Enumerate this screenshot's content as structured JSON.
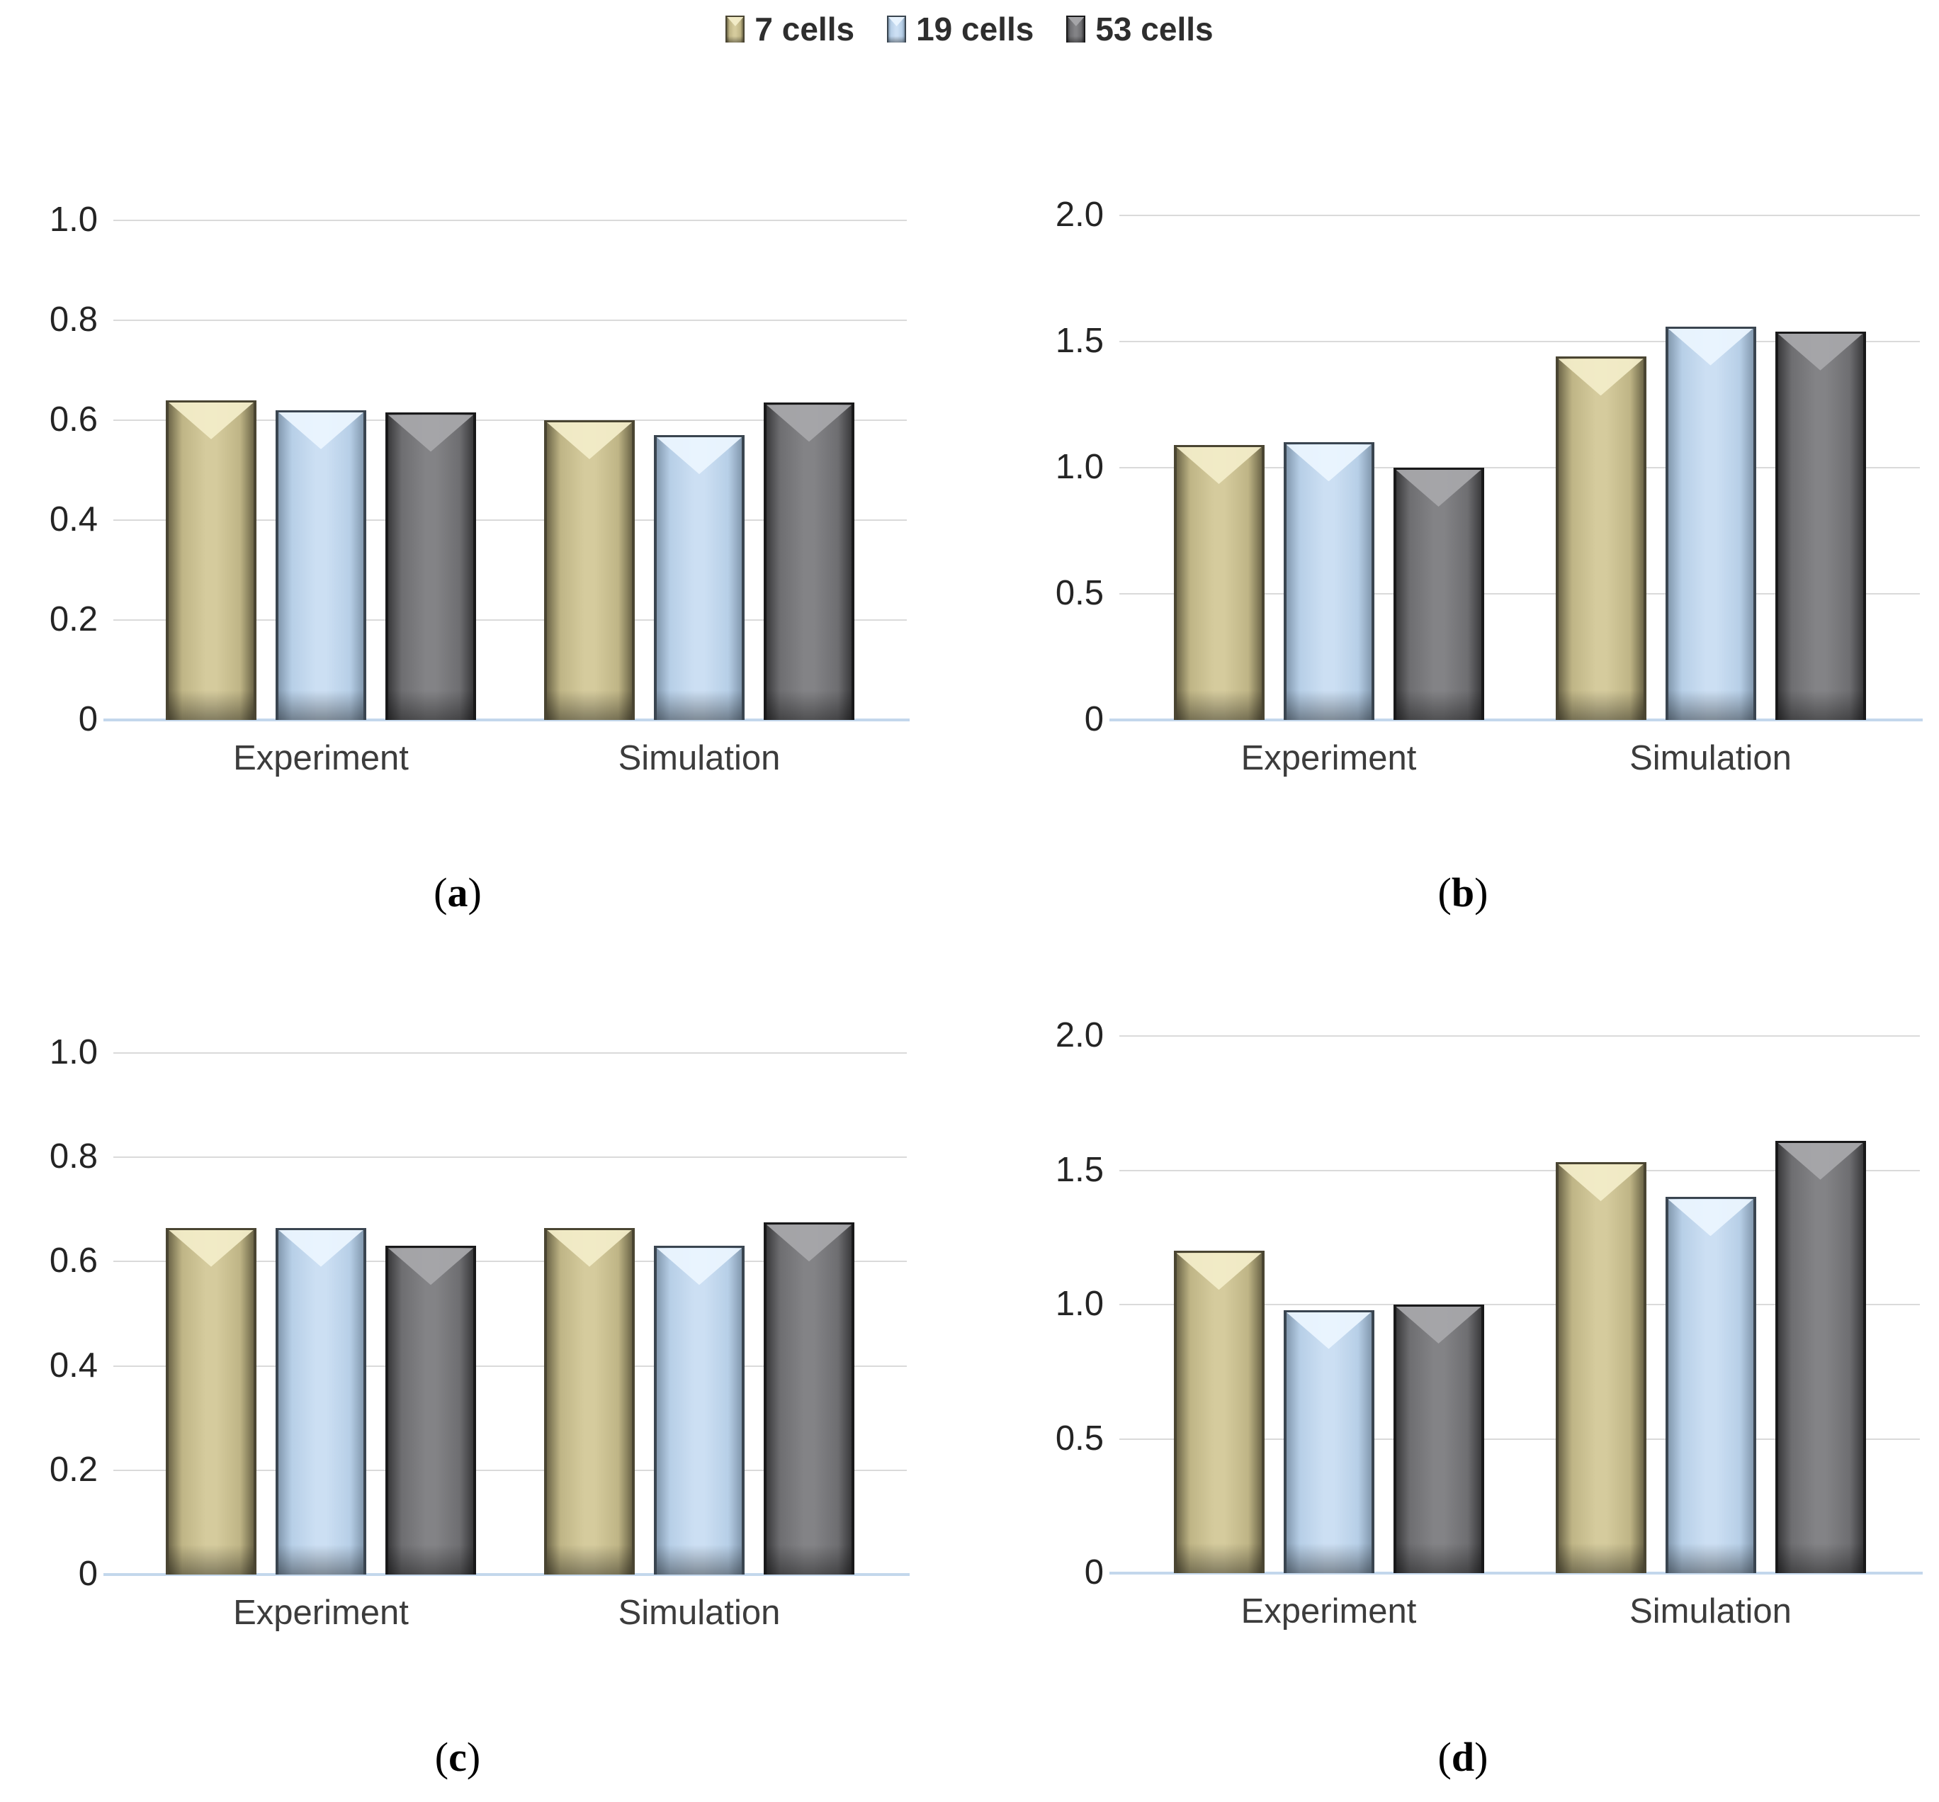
{
  "figure": {
    "background": "#FFFFFF"
  },
  "legend": {
    "items": [
      {
        "label": "7 cells"
      },
      {
        "label": "19 cells"
      },
      {
        "label": "53 cells"
      }
    ]
  },
  "colors": {
    "series": [
      {
        "name": "7 cells",
        "face": "#D5CB9D",
        "mid": "#BFB586",
        "edge": "#6E6749",
        "border": "#4A4532",
        "highlight": "#F2ECC8"
      },
      {
        "name": "19 cells",
        "face": "#CCDFF3",
        "mid": "#B7CFE7",
        "edge": "#8399AF",
        "border": "#3A4550",
        "highlight": "#EAF4FE"
      },
      {
        "name": "53 cells",
        "face": "#838386",
        "mid": "#6E6E71",
        "edge": "#3A3A3C",
        "border": "#19191A",
        "highlight": "#A6A7AA"
      }
    ],
    "gridline": "#DADADA",
    "baseline": "#C3D7EC",
    "tick_text": "#242424",
    "category_text": "#3C3C3C",
    "legend_text": "#2E2E2E"
  },
  "captions": [
    {
      "open": "(",
      "letter": "a",
      "close": ")"
    },
    {
      "open": "(",
      "letter": "b",
      "close": ")"
    },
    {
      "open": "(",
      "letter": "c",
      "close": ")"
    },
    {
      "open": "(",
      "letter": "d",
      "close": ")"
    }
  ],
  "chart_data": [
    {
      "type": "bar",
      "panel": "a",
      "title": "",
      "xlabel": "",
      "ylabel": "",
      "categories": [
        "Experiment",
        "Simulation"
      ],
      "series": [
        {
          "name": "7 cells",
          "values": [
            0.64,
            0.6
          ]
        },
        {
          "name": "19 cells",
          "values": [
            0.62,
            0.57
          ]
        },
        {
          "name": "53 cells",
          "values": [
            0.615,
            0.635
          ]
        }
      ],
      "ylim": [
        0,
        1.0
      ],
      "grid": true,
      "legend_position": "top-shared",
      "yticks": [
        {
          "label": "1.0",
          "value": 1.0
        },
        {
          "label": "0.8",
          "value": 0.8
        },
        {
          "label": "0.6",
          "value": 0.6
        },
        {
          "label": "0.4",
          "value": 0.4
        },
        {
          "label": "0.2",
          "value": 0.2
        },
        {
          "label": "0",
          "value": 0
        }
      ]
    },
    {
      "type": "bar",
      "panel": "b",
      "title": "",
      "xlabel": "",
      "ylabel": "",
      "categories": [
        "Experiment",
        "Simulation"
      ],
      "series": [
        {
          "name": "7 cells",
          "values": [
            1.09,
            1.44
          ]
        },
        {
          "name": "19 cells",
          "values": [
            1.1,
            1.56
          ]
        },
        {
          "name": "53 cells",
          "values": [
            1.0,
            1.54
          ]
        }
      ],
      "ylim": [
        0,
        2.0
      ],
      "grid": true,
      "legend_position": "top-shared",
      "yticks": [
        {
          "label": "2.0",
          "value": 2.0
        },
        {
          "label": "1.5",
          "value": 1.5
        },
        {
          "label": "1.0",
          "value": 1.0
        },
        {
          "label": "0.5",
          "value": 0.5
        },
        {
          "label": "0",
          "value": 0
        }
      ]
    },
    {
      "type": "bar",
      "panel": "c",
      "title": "",
      "xlabel": "",
      "ylabel": "",
      "categories": [
        "Experiment",
        "Simulation"
      ],
      "series": [
        {
          "name": "7 cells",
          "values": [
            0.665,
            0.665
          ]
        },
        {
          "name": "19 cells",
          "values": [
            0.665,
            0.63
          ]
        },
        {
          "name": "53 cells",
          "values": [
            0.63,
            0.675
          ]
        }
      ],
      "ylim": [
        0,
        1.0
      ],
      "grid": true,
      "legend_position": "top-shared",
      "yticks": [
        {
          "label": "1.0",
          "value": 1.0
        },
        {
          "label": "0.8",
          "value": 0.8
        },
        {
          "label": "0.6",
          "value": 0.6
        },
        {
          "label": "0.4",
          "value": 0.4
        },
        {
          "label": "0.2",
          "value": 0.2
        },
        {
          "label": "0",
          "value": 0
        }
      ]
    },
    {
      "type": "bar",
      "panel": "d",
      "title": "",
      "xlabel": "",
      "ylabel": "",
      "categories": [
        "Experiment",
        "Simulation"
      ],
      "series": [
        {
          "name": "7 cells",
          "values": [
            1.2,
            1.53
          ]
        },
        {
          "name": "19 cells",
          "values": [
            0.98,
            1.4
          ]
        },
        {
          "name": "53 cells",
          "values": [
            1.0,
            1.61
          ]
        }
      ],
      "ylim": [
        0,
        2.0
      ],
      "grid": true,
      "legend_position": "top-shared",
      "yticks": [
        {
          "label": "2.0",
          "value": 2.0
        },
        {
          "label": "1.5",
          "value": 1.5
        },
        {
          "label": "1.0",
          "value": 1.0
        },
        {
          "label": "0.5",
          "value": 0.5
        },
        {
          "label": "0",
          "value": 0
        }
      ]
    }
  ]
}
